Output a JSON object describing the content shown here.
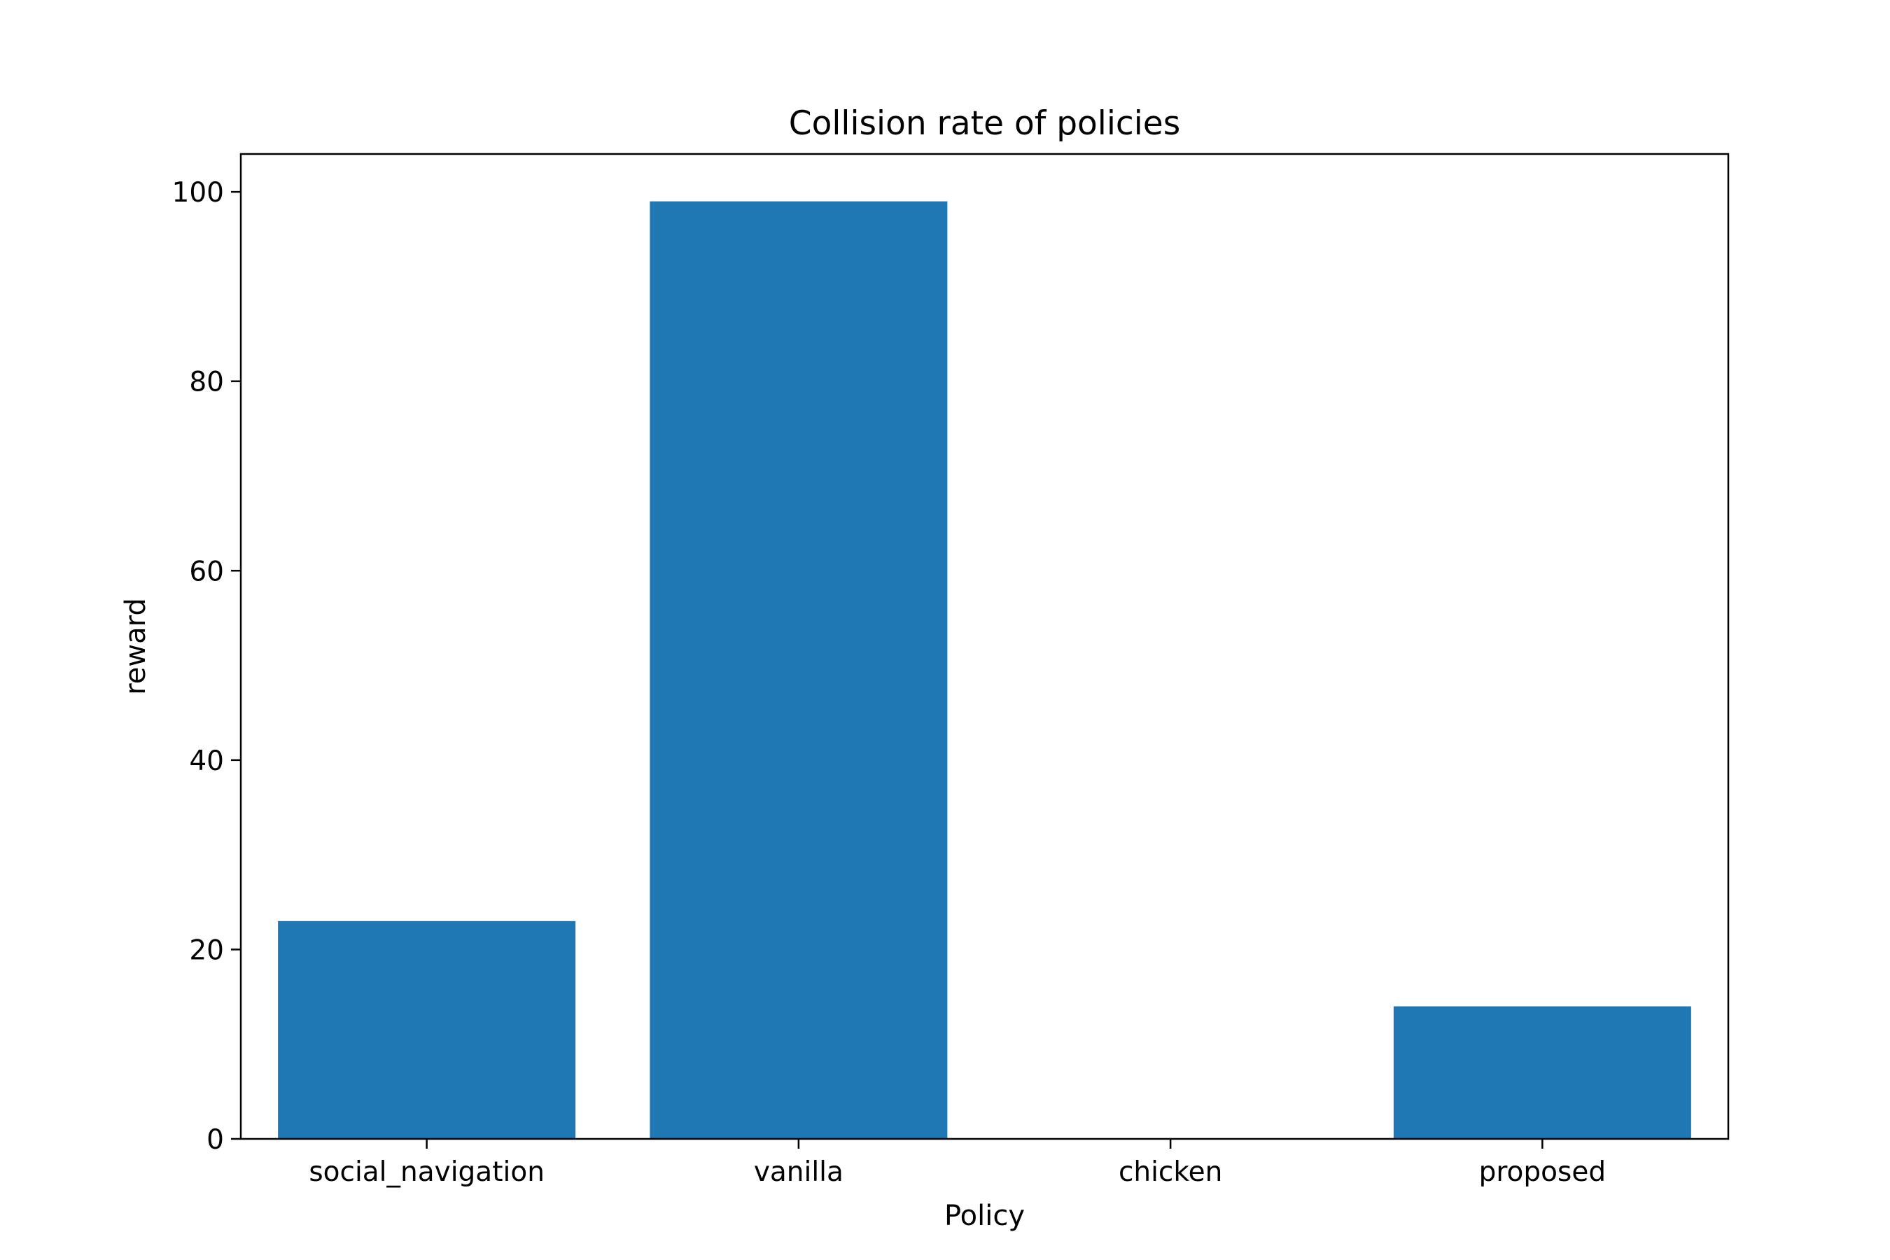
{
  "chart_data": {
    "type": "bar",
    "title": "Collision rate of policies",
    "xlabel": "Policy",
    "ylabel": "reward",
    "categories": [
      "social_navigation",
      "vanilla",
      "chicken",
      "proposed"
    ],
    "values": [
      23,
      99,
      0,
      14
    ],
    "ylim": [
      0,
      104
    ],
    "yticks": [
      0,
      20,
      40,
      60,
      80,
      100
    ],
    "bar_color": "#1f77b4",
    "grid": false,
    "legend": "none"
  }
}
